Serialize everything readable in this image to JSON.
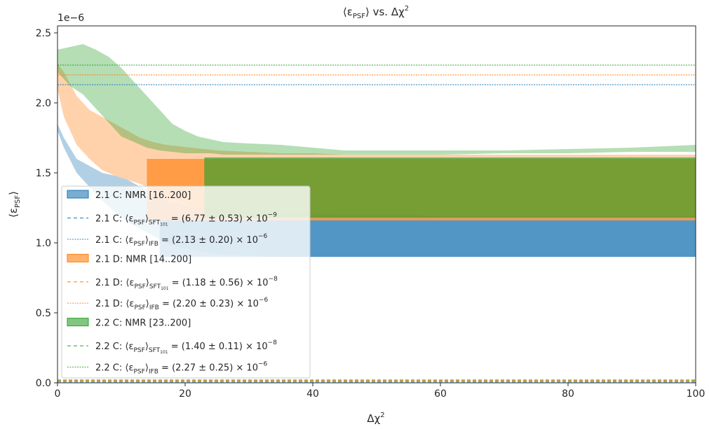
{
  "chart_data": {
    "type": "area",
    "title_main": "⟨ε",
    "title_sub": "PSF",
    "title_rest": "⟩  vs. Δχ",
    "title_sup": "2",
    "xlabel_main": "Δχ",
    "xlabel_sup": "2",
    "ylabel_main": "⟨ε",
    "ylabel_sub": "PSF",
    "ylabel_close": "⟩",
    "y_offset_text": "1e−6",
    "xlim": [
      0,
      100
    ],
    "ylim": [
      0,
      2.55
    ],
    "x_ticks": [
      0,
      20,
      40,
      60,
      80,
      100
    ],
    "x_tick_labels": [
      "0",
      "20",
      "40",
      "60",
      "80",
      "100"
    ],
    "y_ticks": [
      0.0,
      0.5,
      1.0,
      1.5,
      2.0,
      2.5
    ],
    "y_tick_labels": [
      "0.0",
      "0.5",
      "1.0",
      "1.5",
      "2.0",
      "2.5"
    ],
    "grid": false,
    "legend_placement": "lower-left",
    "colors": {
      "blue": "#1f77b4",
      "orange": "#ff7f0e",
      "green": "#2ca02c"
    },
    "bands": [
      {
        "color": "#1f77b4",
        "x": [
          0,
          1,
          3,
          5,
          7,
          9,
          11,
          13,
          15,
          17,
          19,
          21,
          23,
          25,
          30,
          35,
          40,
          45,
          50,
          55,
          60,
          70,
          80,
          90,
          100
        ],
        "upper": [
          1.85,
          1.75,
          1.6,
          1.55,
          1.5,
          1.48,
          1.45,
          1.4,
          1.35,
          1.3,
          1.28,
          1.26,
          1.25,
          1.24,
          1.23,
          1.22,
          1.21,
          1.2,
          1.2,
          1.2,
          1.19,
          1.19,
          1.19,
          1.19,
          1.19
        ],
        "lower": [
          1.8,
          1.68,
          1.5,
          1.4,
          1.3,
          1.22,
          1.15,
          1.1,
          1.05,
          1.0,
          0.97,
          0.95,
          0.93,
          0.92,
          0.91,
          0.9,
          0.9,
          0.9,
          0.9,
          0.9,
          0.9,
          0.9,
          0.9,
          0.9,
          0.9
        ]
      },
      {
        "color": "#ff7f0e",
        "x": [
          0,
          1,
          3,
          5,
          7,
          9,
          11,
          13,
          15,
          17,
          19,
          21,
          23,
          25,
          30,
          35,
          40,
          45,
          50,
          55,
          60,
          70,
          80,
          90,
          100
        ],
        "upper": [
          2.28,
          2.22,
          2.05,
          1.95,
          1.9,
          1.85,
          1.8,
          1.75,
          1.72,
          1.7,
          1.69,
          1.68,
          1.67,
          1.66,
          1.65,
          1.64,
          1.64,
          1.63,
          1.63,
          1.63,
          1.63,
          1.63,
          1.63,
          1.63,
          1.63
        ],
        "lower": [
          2.1,
          1.9,
          1.7,
          1.6,
          1.52,
          1.48,
          1.45,
          1.42,
          1.38,
          1.35,
          1.3,
          1.26,
          1.24,
          1.22,
          1.2,
          1.19,
          1.18,
          1.18,
          1.18,
          1.18,
          1.18,
          1.18,
          1.18,
          1.18,
          1.18
        ]
      },
      {
        "color": "#2ca02c",
        "x": [
          0,
          2,
          4,
          6,
          8,
          10,
          12,
          14,
          16,
          18,
          20,
          22,
          24,
          26,
          30,
          35,
          40,
          45,
          50,
          60,
          70,
          80,
          90,
          100
        ],
        "upper": [
          2.38,
          2.4,
          2.42,
          2.38,
          2.33,
          2.25,
          2.15,
          2.05,
          1.95,
          1.85,
          1.8,
          1.76,
          1.74,
          1.72,
          1.71,
          1.7,
          1.68,
          1.66,
          1.66,
          1.66,
          1.66,
          1.67,
          1.68,
          1.7
        ],
        "lower": [
          2.22,
          2.12,
          2.06,
          1.96,
          1.86,
          1.76,
          1.72,
          1.68,
          1.66,
          1.65,
          1.64,
          1.64,
          1.64,
          1.63,
          1.63,
          1.63,
          1.63,
          1.63,
          1.63,
          1.63,
          1.64,
          1.64,
          1.65,
          1.65
        ]
      }
    ],
    "nmr_rects": [
      {
        "color": "#1f77b4",
        "x0": 16,
        "x1": 100,
        "y0": 0.9,
        "y1": 1.16
      },
      {
        "color": "#ff7f0e",
        "x0": 14,
        "x1": 100,
        "y0": 1.16,
        "y1": 1.6
      },
      {
        "color": "#2ca02c",
        "x0": 23,
        "x1": 100,
        "y0": 1.18,
        "y1": 1.61
      }
    ],
    "ifb_lines": [
      {
        "color": "#1f77b4",
        "y": 2.13
      },
      {
        "color": "#ff7f0e",
        "y": 2.2
      },
      {
        "color": "#2ca02c",
        "y": 2.27
      }
    ],
    "sft_lines": [
      {
        "color": "#1f77b4",
        "y": 0.00677
      },
      {
        "color": "#ff7f0e",
        "y": 0.0118
      },
      {
        "color": "#2ca02c",
        "y": 0.014
      }
    ],
    "legend": [
      {
        "kind": "patch",
        "color": "#1f77b4",
        "parts": [
          {
            "t": "2.1 C: NMR [16..200]"
          }
        ]
      },
      {
        "kind": "dashed",
        "color": "#1f77b4",
        "parts": [
          {
            "t": "2.1 C: ⟨ε"
          },
          {
            "t": "PSF",
            "sub": true
          },
          {
            "t": "⟩"
          },
          {
            "t": "SFT",
            "sub": true
          },
          {
            "t": "101",
            "subsub": true
          },
          {
            "t": " = (6.77 ± 0.53) × 10"
          },
          {
            "t": "−9",
            "sup": true
          }
        ]
      },
      {
        "kind": "dotted",
        "color": "#1f77b4",
        "parts": [
          {
            "t": "2.1 C: ⟨ε"
          },
          {
            "t": "PSF",
            "sub": true
          },
          {
            "t": "⟩"
          },
          {
            "t": "IFB",
            "sub": true
          },
          {
            "t": " = (2.13 ± 0.20) × 10"
          },
          {
            "t": "−6",
            "sup": true
          }
        ]
      },
      {
        "kind": "patch",
        "color": "#ff7f0e",
        "parts": [
          {
            "t": "2.1 D: NMR [14..200]"
          }
        ]
      },
      {
        "kind": "dashed",
        "color": "#ff7f0e",
        "parts": [
          {
            "t": "2.1 D: ⟨ε"
          },
          {
            "t": "PSF",
            "sub": true
          },
          {
            "t": "⟩"
          },
          {
            "t": "SFT",
            "sub": true
          },
          {
            "t": "101",
            "subsub": true
          },
          {
            "t": " = (1.18 ± 0.56) × 10"
          },
          {
            "t": "−8",
            "sup": true
          }
        ]
      },
      {
        "kind": "dotted",
        "color": "#ff7f0e",
        "parts": [
          {
            "t": "2.1 D: ⟨ε"
          },
          {
            "t": "PSF",
            "sub": true
          },
          {
            "t": "⟩"
          },
          {
            "t": "IFB",
            "sub": true
          },
          {
            "t": " = (2.20 ± 0.23) × 10"
          },
          {
            "t": "−6",
            "sup": true
          }
        ]
      },
      {
        "kind": "patch",
        "color": "#2ca02c",
        "parts": [
          {
            "t": "2.2 C: NMR [23..200]"
          }
        ]
      },
      {
        "kind": "dashed",
        "color": "#2ca02c",
        "parts": [
          {
            "t": "2.2 C: ⟨ε"
          },
          {
            "t": "PSF",
            "sub": true
          },
          {
            "t": "⟩"
          },
          {
            "t": "SFT",
            "sub": true
          },
          {
            "t": "101",
            "subsub": true
          },
          {
            "t": " = (1.40 ± 0.11) × 10"
          },
          {
            "t": "−8",
            "sup": true
          }
        ]
      },
      {
        "kind": "dotted",
        "color": "#2ca02c",
        "parts": [
          {
            "t": "2.2 C: ⟨ε"
          },
          {
            "t": "PSF",
            "sub": true
          },
          {
            "t": "⟩"
          },
          {
            "t": "IFB",
            "sub": true
          },
          {
            "t": " = (2.27 ± 0.25) × 10"
          },
          {
            "t": "−6",
            "sup": true
          }
        ]
      }
    ]
  }
}
